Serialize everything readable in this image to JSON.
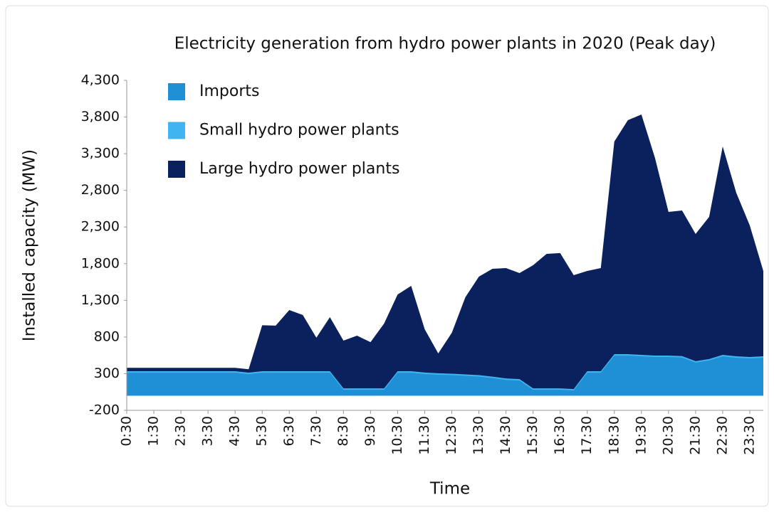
{
  "chart_data": {
    "type": "stacked_area",
    "title": "Electricity generation from hydro power plants in 2020 (Peak day)",
    "y_label": "Installed capacity (MW)",
    "x_label": "Time",
    "categories": [
      "0:30",
      null,
      "1:30",
      null,
      "2:30",
      null,
      "3:30",
      null,
      "4:30",
      null,
      "5:30",
      null,
      "6:30",
      null,
      "7:30",
      null,
      "8:30",
      null,
      "9:30",
      null,
      "10:30",
      null,
      "11:30",
      null,
      "12:30",
      null,
      "13:30",
      null,
      "14:30",
      null,
      "15:30",
      null,
      "16:30",
      null,
      "17:30",
      null,
      "18:30",
      null,
      "19:30",
      null,
      "20:30",
      null,
      "21:30",
      null,
      "22:30",
      null,
      "23:30",
      null
    ],
    "series": [
      {
        "name": "Imports",
        "color": "#1f8fd6",
        "values": [
          313,
          313,
          313,
          313,
          313,
          313,
          313,
          313,
          313,
          294,
          313,
          313,
          313,
          313,
          313,
          313,
          80,
          80,
          80,
          80,
          313,
          313,
          295,
          285,
          280,
          270,
          260,
          240,
          215,
          205,
          80,
          80,
          80,
          70,
          313,
          313,
          546,
          546,
          536,
          527,
          527,
          520,
          450,
          480,
          536,
          517,
          507,
          517
        ]
      },
      {
        "name": "Small hydro power plants",
        "color": "#3fb4ee",
        "values": [
          20,
          20,
          20,
          20,
          20,
          20,
          20,
          20,
          20,
          20,
          20,
          20,
          20,
          20,
          20,
          20,
          20,
          20,
          20,
          20,
          20,
          20,
          20,
          20,
          20,
          20,
          20,
          20,
          20,
          20,
          20,
          20,
          20,
          20,
          20,
          20,
          20,
          20,
          20,
          20,
          20,
          20,
          20,
          20,
          20,
          20,
          20,
          20
        ]
      },
      {
        "name": "Large hydro power plants",
        "color": "#0a215e",
        "values": [
          47,
          47,
          47,
          47,
          47,
          47,
          47,
          47,
          47,
          46,
          627,
          622,
          835,
          767,
          457,
          737,
          650,
          718,
          630,
          883,
          1047,
          1164,
          591,
          271,
          557,
          1052,
          1343,
          1470,
          1505,
          1447,
          1679,
          1834,
          1844,
          1553,
          1368,
          1407,
          2900,
          3191,
          3279,
          2696,
          1959,
          1985,
          1735,
          1938,
          2842,
          2231,
          1795,
          1163
        ]
      }
    ],
    "ylim": [
      -200,
      4300
    ],
    "yticks": [
      -200,
      300,
      800,
      {
        "value": 1300,
        "label": "1,300"
      },
      {
        "value": 1800,
        "label": "1,800"
      },
      {
        "value": 2300,
        "label": "2,300"
      },
      {
        "value": 2800,
        "label": "2,800"
      },
      {
        "value": 3300,
        "label": "3,300"
      },
      {
        "value": 3800,
        "label": "3,800"
      },
      {
        "value": 4300,
        "label": "4,300"
      }
    ],
    "legend": "upper left",
    "grid": false
  }
}
